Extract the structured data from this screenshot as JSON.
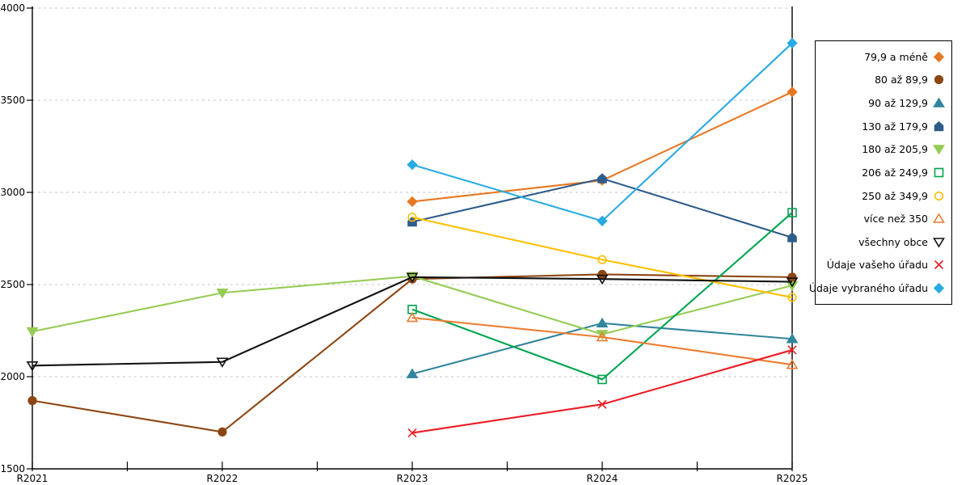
{
  "chart_data": {
    "type": "line",
    "title": "",
    "xlabel": "",
    "ylabel": "",
    "x_categories": [
      "R2021",
      "R2022",
      "R2023",
      "R2024",
      "R2025"
    ],
    "y_ticks": [
      1500,
      2000,
      2500,
      3000,
      3500,
      4000
    ],
    "ylim": [
      1500,
      4000
    ],
    "grid": "horizontal-dashed",
    "legend_position": "right",
    "colors": {
      "gridline": "#c6c6c6",
      "axis": "#000000",
      "background": "#ffffff"
    },
    "series": [
      {
        "name": "79,9 a méně",
        "color": "#E87722",
        "marker": "diamond",
        "filled": true,
        "values": [
          null,
          null,
          2950,
          3065,
          3545
        ]
      },
      {
        "name": "80 až 89,9",
        "color": "#8C4613",
        "marker": "circle",
        "filled": true,
        "values": [
          1870,
          1700,
          2530,
          2555,
          2540
        ]
      },
      {
        "name": "90 až 129,9",
        "color": "#31859C",
        "marker": "triangle-up",
        "filled": true,
        "values": [
          null,
          null,
          2015,
          2290,
          2205
        ]
      },
      {
        "name": "130 až 179,9",
        "color": "#2E5C8A",
        "marker": "pentagon",
        "filled": true,
        "values": [
          null,
          null,
          2840,
          3075,
          2755
        ]
      },
      {
        "name": "180 až 205,9",
        "color": "#95CC53",
        "marker": "triangle-down",
        "filled": true,
        "values": [
          2245,
          2455,
          2545,
          2230,
          2495
        ]
      },
      {
        "name": "206 až 249,9",
        "color": "#00A550",
        "marker": "square",
        "filled": false,
        "values": [
          null,
          null,
          2365,
          1985,
          2890
        ]
      },
      {
        "name": "250 až 349,9",
        "color": "#FFC000",
        "marker": "circle",
        "filled": false,
        "values": [
          null,
          null,
          2865,
          2635,
          2430
        ]
      },
      {
        "name": "více než 350",
        "color": "#ED7D31",
        "marker": "triangle-up",
        "filled": false,
        "values": [
          null,
          null,
          2320,
          2215,
          2065
        ]
      },
      {
        "name": "všechny obce",
        "color": "#111111",
        "marker": "triangle-down",
        "filled": false,
        "values": [
          2060,
          2080,
          2540,
          2530,
          2515
        ]
      },
      {
        "name": "Údaje vašeho úřadu",
        "color": "#ED1C24",
        "marker": "x",
        "filled": false,
        "values": [
          null,
          null,
          1695,
          1850,
          2145
        ]
      },
      {
        "name": "Údaje vybraného úřadu",
        "color": "#29ABE2",
        "marker": "diamond",
        "filled": true,
        "values": [
          null,
          null,
          3150,
          2845,
          3810
        ]
      }
    ]
  }
}
